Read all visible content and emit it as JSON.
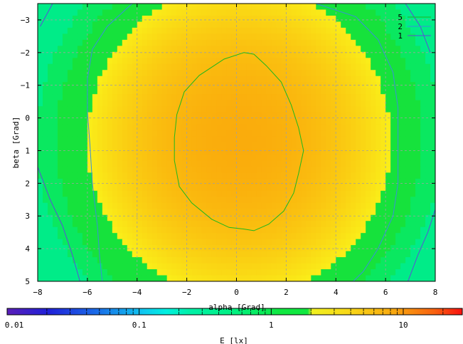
{
  "chart_data": {
    "type": "heatmap",
    "xlabel": "alpha [Grad]",
    "ylabel": "beta [Grad]",
    "colorbar_label": "E [lx]",
    "xlim": [
      -8,
      8
    ],
    "ylim": [
      5,
      -3.5
    ],
    "x_ticks": [
      -8,
      -6,
      -4,
      -2,
      0,
      2,
      4,
      6,
      8
    ],
    "y_ticks": [
      -3,
      -2,
      -1,
      0,
      1,
      2,
      3,
      4,
      5
    ],
    "grid": true,
    "colorbar": {
      "scale": "log",
      "range": [
        0.01,
        28
      ],
      "ticks": [
        {
          "value": 0.01,
          "label": "0.01"
        },
        {
          "value": 0.1,
          "label": "0.1"
        },
        {
          "value": 1,
          "label": "1"
        },
        {
          "value": 10,
          "label": "10"
        }
      ]
    },
    "legend": {
      "position": "top-right",
      "entries": [
        {
          "label": "5",
          "color": "#1db81d"
        },
        {
          "label": "2",
          "color": "#3a8fd8"
        },
        {
          "label": "1",
          "color": "#5a4ed8"
        }
      ]
    },
    "contours": [
      {
        "level": 5,
        "color": "#1db81d",
        "points": [
          [
            0.3,
            -2
          ],
          [
            -0.5,
            -1.8
          ],
          [
            -1.5,
            -1.3
          ],
          [
            -2.1,
            -0.8
          ],
          [
            -2.4,
            -0.1
          ],
          [
            -2.5,
            0.6
          ],
          [
            -2.5,
            1.3
          ],
          [
            -2.3,
            2.1
          ],
          [
            -1.8,
            2.6
          ],
          [
            -1,
            3.1
          ],
          [
            -0.3,
            3.35
          ],
          [
            0.3,
            3.4
          ],
          [
            0.7,
            3.45
          ],
          [
            1.3,
            3.25
          ],
          [
            1.9,
            2.85
          ],
          [
            2.3,
            2.3
          ],
          [
            2.5,
            1.7
          ],
          [
            2.7,
            1
          ],
          [
            2.5,
            0.3
          ],
          [
            2.2,
            -0.4
          ],
          [
            1.8,
            -1.1
          ],
          [
            1.2,
            -1.6
          ],
          [
            0.7,
            -1.95
          ]
        ]
      },
      {
        "level": 2,
        "color": "#3a8fd8",
        "points": [
          [
            -4.2,
            -3.5
          ],
          [
            -5.2,
            -2.8
          ],
          [
            -5.8,
            -2.1
          ],
          [
            -6,
            -1.2
          ],
          [
            -6,
            -0.2
          ],
          [
            -5.9,
            0.8
          ],
          [
            -5.8,
            2
          ],
          [
            -5.6,
            3.3
          ],
          [
            -5.5,
            4.3
          ],
          [
            -5.4,
            5
          ]
        ]
      },
      {
        "level": 2,
        "color": "#3a8fd8",
        "points": [
          [
            3.2,
            -3.5
          ],
          [
            4.8,
            -3.1
          ],
          [
            5.7,
            -2.4
          ],
          [
            6.3,
            -1.4
          ],
          [
            6.5,
            -0.3
          ],
          [
            6.5,
            0.8
          ],
          [
            6.5,
            2
          ],
          [
            6.3,
            3
          ],
          [
            5.7,
            4
          ],
          [
            5.1,
            4.7
          ],
          [
            4.7,
            5
          ]
        ]
      },
      {
        "level": 1,
        "color": "#5a4ed8",
        "points": [
          [
            -7.4,
            -3.5
          ],
          [
            -7.9,
            -2.8
          ]
        ]
      },
      {
        "level": 1,
        "color": "#5a4ed8",
        "points": [
          [
            -8,
            1.5
          ],
          [
            -7.5,
            2.5
          ],
          [
            -7,
            3.3
          ],
          [
            -6.6,
            4.2
          ],
          [
            -6.3,
            5
          ]
        ]
      },
      {
        "level": 1,
        "color": "#5a4ed8",
        "points": [
          [
            6.8,
            -3.5
          ],
          [
            7.4,
            -2.8
          ],
          [
            7.8,
            -2
          ]
        ]
      },
      {
        "level": 1,
        "color": "#5a4ed8",
        "points": [
          [
            8,
            2.8
          ],
          [
            7.7,
            3.5
          ],
          [
            7.3,
            4.2
          ],
          [
            6.9,
            5
          ]
        ]
      }
    ]
  }
}
